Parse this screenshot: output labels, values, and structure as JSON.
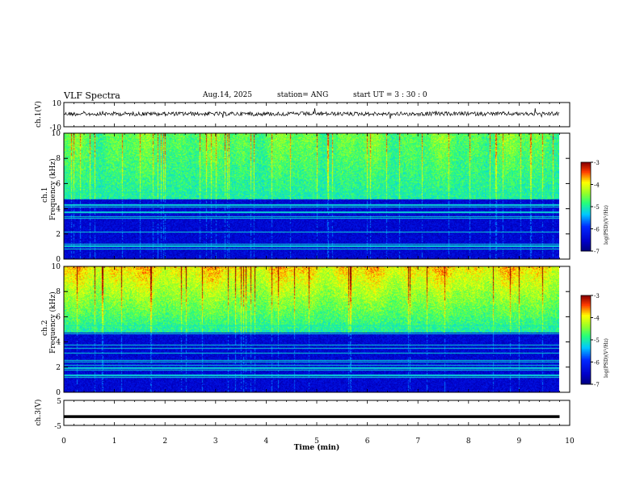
{
  "header": {
    "title": "VLF Spectra",
    "date": "Aug.14, 2025",
    "station": "station= ANG",
    "start_ut": "start  UT  =   3  : 30 : 0"
  },
  "chart_data": [
    {
      "type": "line",
      "name": "ch1-waveform",
      "ylabel": "ch.1(V)",
      "ylim": [
        -10,
        10
      ],
      "yticks": [
        "10",
        "-10"
      ],
      "xlim": [
        0,
        10
      ],
      "description_value_level": 0
    },
    {
      "type": "heatmap",
      "name": "ch1-spectrogram",
      "ylabel": "ch.1\nFrequency (kHz)",
      "ylabel_lines": [
        "ch.1",
        "Frequency (kHz)"
      ],
      "ylim": [
        0,
        10
      ],
      "yticks": [
        "0",
        "2",
        "4",
        "6",
        "8",
        "10"
      ],
      "xlim": [
        0,
        10
      ],
      "colorbar": {
        "min": -7,
        "max": -3,
        "ticks": [
          "-3",
          "-4",
          "-5",
          "-6",
          "-7"
        ],
        "label": "log(PSD)(V²/Hz)"
      }
    },
    {
      "type": "heatmap",
      "name": "ch2-spectrogram",
      "ylabel_lines": [
        "ch.2",
        "Frequency (kHz)"
      ],
      "ylim": [
        0,
        10
      ],
      "yticks": [
        "0",
        "2",
        "4",
        "6",
        "8",
        "10"
      ],
      "xlim": [
        0,
        10
      ],
      "colorbar": {
        "min": -7,
        "max": -3,
        "ticks": [
          "-3",
          "-4",
          "-5",
          "-6",
          "-7"
        ],
        "label": "log(PSD)(V²/Hz)"
      }
    },
    {
      "type": "line",
      "name": "ch3-waveform",
      "ylabel": "ch.3(V)",
      "ylim": [
        -5,
        5
      ],
      "yticks": [
        "5",
        "-5"
      ],
      "xlim": [
        0,
        10
      ],
      "xticks": [
        "0",
        "1",
        "2",
        "3",
        "4",
        "5",
        "6",
        "7",
        "8",
        "9",
        "10"
      ],
      "xlabel": "Time (min)",
      "value_level": -1.5,
      "data_end_min": 9.8
    }
  ],
  "colors": {
    "deep_blue": "#00008b",
    "blue": "#0000ff",
    "cyan": "#00c8ff",
    "green": "#32ff32",
    "yellow": "#ffff00",
    "red": "#ff0000",
    "dark_red": "#800000"
  }
}
